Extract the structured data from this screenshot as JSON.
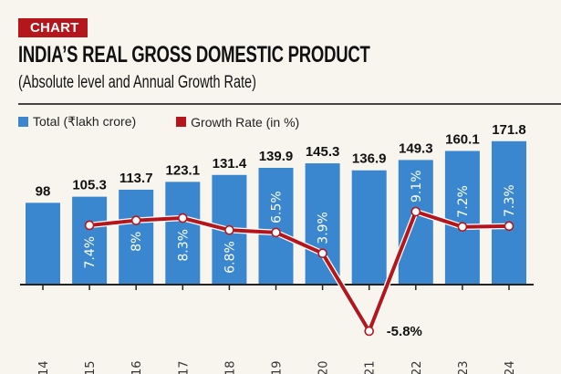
{
  "header": {
    "badge": "CHART",
    "title": "INDIA’S REAL GROSS DOMESTIC PRODUCT",
    "subtitle": "(Absolute level and Annual Growth Rate)"
  },
  "legend": [
    {
      "label": "Total (₹lakh crore)",
      "color": "#3b87cf"
    },
    {
      "label": "Growth Rate (in %)",
      "color": "#b5161c"
    }
  ],
  "chart_data": {
    "type": "bar",
    "title": "INDIA’S REAL GROSS DOMESTIC PRODUCT",
    "subtitle": "(Absolute level and Annual Growth Rate)",
    "xlabel": "",
    "ylabel": "",
    "categories": [
      "14",
      "15",
      "16",
      "17",
      "18",
      "19",
      "20",
      "21",
      "22",
      "23",
      "24"
    ],
    "series": [
      {
        "name": "Total (₹lakh crore)",
        "type": "bar",
        "color": "#3b87cf",
        "values": [
          98,
          105.3,
          113.7,
          123.1,
          131.4,
          139.9,
          145.3,
          136.9,
          149.3,
          160.1,
          171.8
        ],
        "labels": [
          "98",
          "105.3",
          "113.7",
          "123.1",
          "131.4",
          "139.9",
          "145.3",
          "136.9",
          "149.3",
          "160.1",
          "171.8"
        ]
      },
      {
        "name": "Growth Rate (in %)",
        "type": "line",
        "color": "#b5161c",
        "values": [
          null,
          7.4,
          8.0,
          8.3,
          6.8,
          6.5,
          3.9,
          -5.8,
          9.1,
          7.2,
          7.3
        ],
        "labels": [
          "",
          "7.4%",
          "8%",
          "8.3%",
          "6.8%",
          "6.5%",
          "3.9%",
          "-5.8%",
          "9.1%",
          "7.2%",
          "7.3%"
        ]
      }
    ],
    "grid": false,
    "legend_position": "top-left"
  }
}
